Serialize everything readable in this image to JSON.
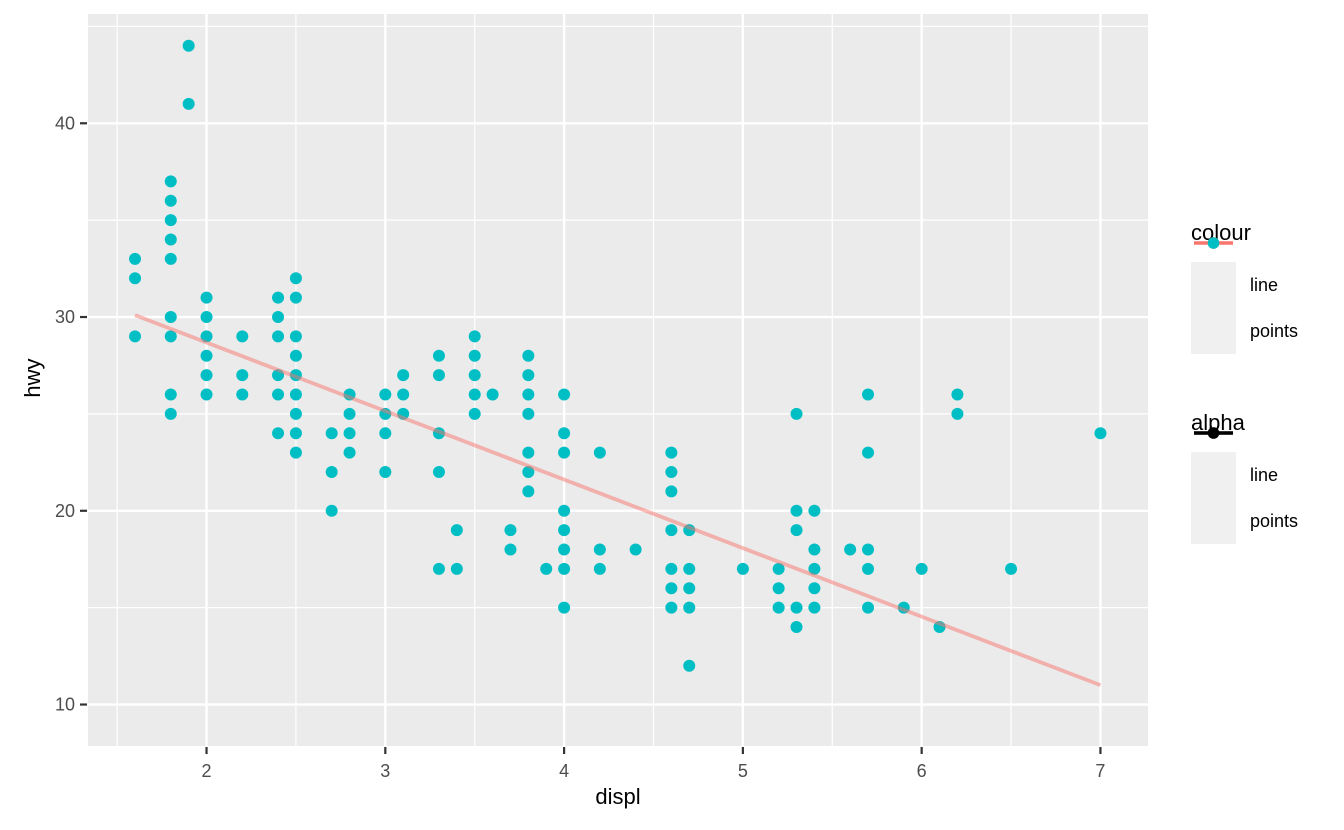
{
  "figure": {
    "background": "#FFFFFF",
    "panel_background": "#EBEBEB",
    "grid_color": "#FFFFFF",
    "tick_mark_color": "#333333",
    "tick_label_color": "#4D4D4D",
    "text_color": "#000000"
  },
  "chart_data": {
    "type": "scatter",
    "title": "",
    "xlabel": "displ",
    "ylabel": "hwy",
    "xlim": [
      1.337,
      7.266
    ],
    "ylim": [
      7.86,
      45.64
    ],
    "x_ticks": [
      2,
      3,
      4,
      5,
      6,
      7
    ],
    "y_ticks": [
      10,
      20,
      30,
      40
    ],
    "x_minor_ticks": [
      1.5,
      2.5,
      3.5,
      4.5,
      5.5,
      6.5
    ],
    "y_minor_ticks": [
      15,
      25,
      35,
      45
    ],
    "grid": true,
    "legend_position": "right",
    "series": [
      {
        "name": "points",
        "type": "scatter",
        "color": "#00BFC4",
        "alpha": 1,
        "points": [
          [
            1.6,
            29
          ],
          [
            1.6,
            32
          ],
          [
            1.6,
            33
          ],
          [
            1.8,
            25
          ],
          [
            1.8,
            26
          ],
          [
            1.8,
            29
          ],
          [
            1.8,
            30
          ],
          [
            1.8,
            33
          ],
          [
            1.8,
            34
          ],
          [
            1.8,
            35
          ],
          [
            1.8,
            36
          ],
          [
            1.8,
            37
          ],
          [
            1.9,
            41
          ],
          [
            1.9,
            44
          ],
          [
            2.0,
            26
          ],
          [
            2.0,
            27
          ],
          [
            2.0,
            28
          ],
          [
            2.0,
            29
          ],
          [
            2.0,
            30
          ],
          [
            2.0,
            31
          ],
          [
            2.2,
            26
          ],
          [
            2.2,
            27
          ],
          [
            2.2,
            29
          ],
          [
            2.4,
            24
          ],
          [
            2.4,
            26
          ],
          [
            2.4,
            27
          ],
          [
            2.4,
            29
          ],
          [
            2.4,
            30
          ],
          [
            2.4,
            31
          ],
          [
            2.5,
            23
          ],
          [
            2.5,
            24
          ],
          [
            2.5,
            25
          ],
          [
            2.5,
            26
          ],
          [
            2.5,
            27
          ],
          [
            2.5,
            28
          ],
          [
            2.5,
            29
          ],
          [
            2.5,
            31
          ],
          [
            2.5,
            32
          ],
          [
            2.7,
            20
          ],
          [
            2.7,
            22
          ],
          [
            2.7,
            24
          ],
          [
            2.8,
            23
          ],
          [
            2.8,
            24
          ],
          [
            2.8,
            25
          ],
          [
            2.8,
            26
          ],
          [
            3.0,
            22
          ],
          [
            3.0,
            24
          ],
          [
            3.0,
            25
          ],
          [
            3.0,
            26
          ],
          [
            3.1,
            25
          ],
          [
            3.1,
            26
          ],
          [
            3.1,
            27
          ],
          [
            3.3,
            17
          ],
          [
            3.3,
            22
          ],
          [
            3.3,
            24
          ],
          [
            3.3,
            27
          ],
          [
            3.3,
            28
          ],
          [
            3.4,
            17
          ],
          [
            3.4,
            19
          ],
          [
            3.5,
            25
          ],
          [
            3.5,
            26
          ],
          [
            3.5,
            27
          ],
          [
            3.5,
            28
          ],
          [
            3.5,
            29
          ],
          [
            3.6,
            26
          ],
          [
            3.7,
            18
          ],
          [
            3.7,
            19
          ],
          [
            3.8,
            21
          ],
          [
            3.8,
            22
          ],
          [
            3.8,
            23
          ],
          [
            3.8,
            25
          ],
          [
            3.8,
            26
          ],
          [
            3.8,
            27
          ],
          [
            3.8,
            28
          ],
          [
            3.9,
            17
          ],
          [
            4.0,
            15
          ],
          [
            4.0,
            17
          ],
          [
            4.0,
            18
          ],
          [
            4.0,
            19
          ],
          [
            4.0,
            20
          ],
          [
            4.0,
            23
          ],
          [
            4.0,
            24
          ],
          [
            4.0,
            26
          ],
          [
            4.2,
            17
          ],
          [
            4.2,
            18
          ],
          [
            4.2,
            23
          ],
          [
            4.4,
            18
          ],
          [
            4.6,
            15
          ],
          [
            4.6,
            16
          ],
          [
            4.6,
            17
          ],
          [
            4.6,
            19
          ],
          [
            4.6,
            21
          ],
          [
            4.6,
            22
          ],
          [
            4.6,
            23
          ],
          [
            4.7,
            12
          ],
          [
            4.7,
            15
          ],
          [
            4.7,
            16
          ],
          [
            4.7,
            17
          ],
          [
            4.7,
            19
          ],
          [
            5.0,
            17
          ],
          [
            5.2,
            15
          ],
          [
            5.2,
            16
          ],
          [
            5.2,
            17
          ],
          [
            5.3,
            14
          ],
          [
            5.3,
            15
          ],
          [
            5.3,
            19
          ],
          [
            5.3,
            20
          ],
          [
            5.3,
            25
          ],
          [
            5.4,
            15
          ],
          [
            5.4,
            16
          ],
          [
            5.4,
            17
          ],
          [
            5.4,
            18
          ],
          [
            5.4,
            20
          ],
          [
            5.6,
            18
          ],
          [
            5.7,
            15
          ],
          [
            5.7,
            17
          ],
          [
            5.7,
            18
          ],
          [
            5.7,
            23
          ],
          [
            5.7,
            26
          ],
          [
            5.9,
            15
          ],
          [
            6.0,
            17
          ],
          [
            6.1,
            14
          ],
          [
            6.2,
            25
          ],
          [
            6.2,
            26
          ],
          [
            6.5,
            17
          ],
          [
            7.0,
            24
          ]
        ]
      },
      {
        "name": "line",
        "type": "line",
        "color": "#F8766D",
        "alpha": 0.5,
        "points": [
          [
            1.6,
            30.1
          ],
          [
            7.0,
            11.0
          ]
        ]
      }
    ]
  },
  "legends": [
    {
      "title": "colour",
      "entries": [
        {
          "label": "line",
          "glyph": "line-and-point",
          "color": "#F8766D",
          "alpha": 1
        },
        {
          "label": "points",
          "glyph": "point",
          "color": "#00BFC4",
          "alpha": 1
        }
      ]
    },
    {
      "title": "alpha",
      "entries": [
        {
          "label": "line",
          "glyph": "line-and-point",
          "color": "#000000",
          "alpha": 0.45
        },
        {
          "label": "points",
          "glyph": "line-and-point",
          "color": "#000000",
          "alpha": 1
        }
      ]
    }
  ]
}
